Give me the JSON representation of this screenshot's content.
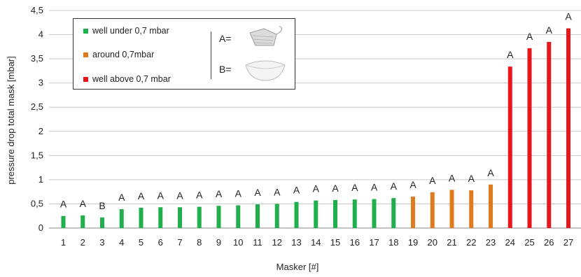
{
  "chart_data": {
    "type": "bar",
    "xlabel": "Masker [#]",
    "ylabel": "pressure drop total mask [mbar]",
    "ylim": [
      0,
      4.5
    ],
    "yticks": [
      "0",
      "0,5",
      "1",
      "1,5",
      "2",
      "2,5",
      "3",
      "3,5",
      "4",
      "4,5"
    ],
    "grid": "horizontal",
    "categories": [
      "1",
      "2",
      "3",
      "4",
      "5",
      "6",
      "7",
      "8",
      "9",
      "10",
      "11",
      "12",
      "13",
      "14",
      "15",
      "16",
      "17",
      "18",
      "19",
      "20",
      "21",
      "22",
      "23",
      "24",
      "25",
      "26",
      "27"
    ],
    "values": [
      0.25,
      0.26,
      0.22,
      0.39,
      0.42,
      0.43,
      0.43,
      0.44,
      0.46,
      0.47,
      0.49,
      0.5,
      0.54,
      0.57,
      0.58,
      0.59,
      0.6,
      0.62,
      0.65,
      0.74,
      0.79,
      0.78,
      0.9,
      3.34,
      3.72,
      3.85,
      4.13
    ],
    "annotations": [
      "A",
      "A",
      "B",
      "A",
      "A",
      "A",
      "A",
      "A",
      "A",
      "A",
      "A",
      "A",
      "A",
      "A",
      "A",
      "A",
      "A",
      "A",
      "A",
      "A",
      "A",
      "A",
      "A",
      "A",
      "A",
      "A",
      "A"
    ],
    "bar_groups": [
      "under",
      "under",
      "under",
      "under",
      "under",
      "under",
      "under",
      "under",
      "under",
      "under",
      "under",
      "under",
      "under",
      "under",
      "under",
      "under",
      "under",
      "under",
      "around",
      "around",
      "around",
      "around",
      "around",
      "above",
      "above",
      "above",
      "above"
    ],
    "colors": {
      "under": "#1fb04b",
      "around": "#e07a1f",
      "above": "#e8151b"
    },
    "legend": {
      "placement": "top-left",
      "entries": [
        {
          "key": "under",
          "label": "well under 0,7 mbar"
        },
        {
          "key": "around",
          "label": "around 0,7mbar"
        },
        {
          "key": "above",
          "label": "well above 0,7 mbar"
        }
      ],
      "mask_a_label": "A=",
      "mask_b_label": "B="
    }
  }
}
